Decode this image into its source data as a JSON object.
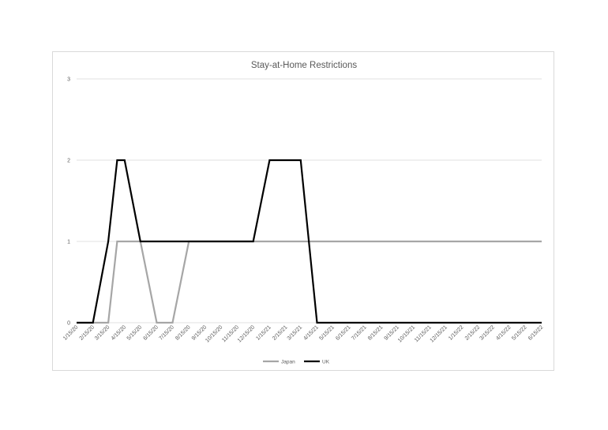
{
  "chart_data": {
    "type": "line",
    "title": "Stay-at-Home Restrictions",
    "xlabel": "",
    "ylabel": "",
    "ylim": [
      0,
      3
    ],
    "yticks": [
      0,
      1,
      2,
      3
    ],
    "grid": true,
    "legend_position": "bottom",
    "categories": [
      "1/15/20",
      "2/15/20",
      "3/15/20",
      "4/15/20",
      "5/15/20",
      "6/15/20",
      "7/15/20",
      "8/15/20",
      "9/15/20",
      "10/15/20",
      "11/15/20",
      "12/15/20",
      "1/15/21",
      "2/15/21",
      "3/15/21",
      "4/15/21",
      "5/15/21",
      "6/15/21",
      "7/15/21",
      "8/15/21",
      "9/15/21",
      "10/15/21",
      "11/15/21",
      "12/15/21",
      "1/15/22",
      "2/15/22",
      "3/15/22",
      "4/15/22",
      "5/15/22",
      "6/15/22"
    ],
    "series": [
      {
        "name": "Japan",
        "color": "#a6a6a6",
        "points": [
          {
            "x": "1/15/20",
            "y": 0
          },
          {
            "x": "3/15/20",
            "y": 0
          },
          {
            "x": "4/1/20",
            "y": 1
          },
          {
            "x": "5/15/20",
            "y": 1
          },
          {
            "x": "6/15/20",
            "y": 0
          },
          {
            "x": "7/15/20",
            "y": 0
          },
          {
            "x": "8/15/20",
            "y": 1
          },
          {
            "x": "6/15/22",
            "y": 1
          }
        ]
      },
      {
        "name": "UK",
        "color": "#000000",
        "points": [
          {
            "x": "1/15/20",
            "y": 0
          },
          {
            "x": "2/15/20",
            "y": 0
          },
          {
            "x": "3/15/20",
            "y": 1
          },
          {
            "x": "4/1/20",
            "y": 2
          },
          {
            "x": "4/15/20",
            "y": 2
          },
          {
            "x": "5/15/20",
            "y": 1
          },
          {
            "x": "12/15/20",
            "y": 1
          },
          {
            "x": "1/15/21",
            "y": 2
          },
          {
            "x": "3/15/21",
            "y": 2
          },
          {
            "x": "4/15/21",
            "y": 0
          },
          {
            "x": "6/15/22",
            "y": 0
          }
        ]
      }
    ]
  }
}
